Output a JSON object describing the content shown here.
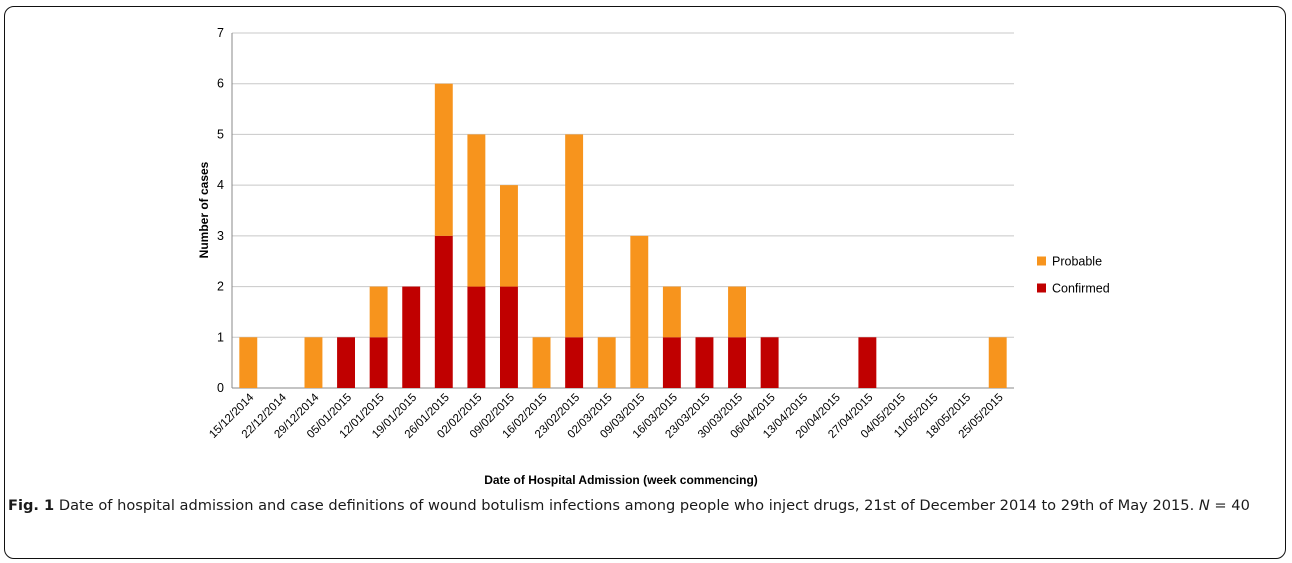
{
  "chart_data": {
    "type": "bar",
    "stacked": true,
    "xlabel": "Date of Hospital Admission (week commencing)",
    "ylabel": "Number of cases",
    "ylim": [
      0,
      7
    ],
    "yticks": [
      0,
      1,
      2,
      3,
      4,
      5,
      6,
      7
    ],
    "grid": true,
    "legend_position": "right",
    "categories": [
      "15/12/2014",
      "22/12/2014",
      "29/12/2014",
      "05/01/2015",
      "12/01/2015",
      "19/01/2015",
      "26/01/2015",
      "02/02/2015",
      "09/02/2015",
      "16/02/2015",
      "23/02/2015",
      "02/03/2015",
      "09/03/2015",
      "16/03/2015",
      "23/03/2015",
      "30/03/2015",
      "06/04/2015",
      "13/04/2015",
      "20/04/2015",
      "27/04/2015",
      "04/05/2015",
      "11/05/2015",
      "18/05/2015",
      "25/05/2015"
    ],
    "series": [
      {
        "name": "Confirmed",
        "color": "#c00000",
        "values": [
          0,
          0,
          0,
          1,
          1,
          2,
          3,
          2,
          2,
          0,
          1,
          0,
          0,
          1,
          1,
          1,
          1,
          0,
          0,
          1,
          0,
          0,
          0,
          0
        ]
      },
      {
        "name": "Probable",
        "color": "#f7941d",
        "values": [
          1,
          0,
          1,
          0,
          1,
          0,
          3,
          3,
          2,
          1,
          4,
          1,
          3,
          1,
          0,
          1,
          0,
          0,
          0,
          0,
          0,
          0,
          0,
          1
        ]
      }
    ]
  },
  "caption": {
    "fig_label": "Fig. 1",
    "text": " Date of hospital admission and case definitions of wound botulism infections among people who inject drugs, 21st of December 2014 to 29th of May 2015. ",
    "n_label": "N",
    "n_value": " = 40"
  }
}
